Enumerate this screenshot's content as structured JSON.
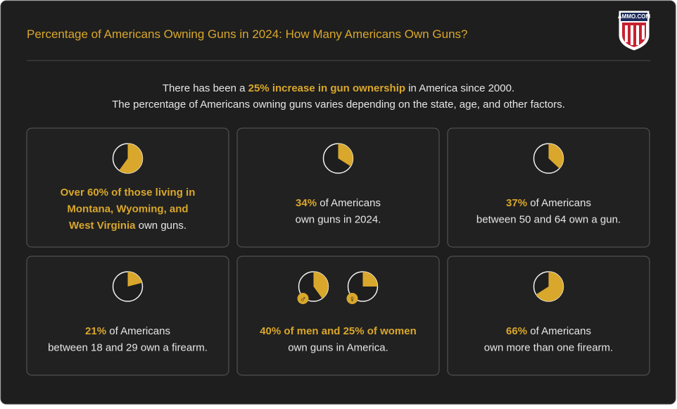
{
  "header": {
    "title": "Percentage of Americans Owning Guns in 2024: How Many Americans Own Guns?",
    "logo_text": "AMMO.COM"
  },
  "intro": {
    "lines": [
      [
        {
          "text": "There has been a "
        },
        {
          "text": "25% increase in gun ownership",
          "highlight": true
        },
        {
          "text": " in America since 2000."
        }
      ],
      [
        {
          "text": "The percentage of Americans owning guns varies depending on the state, age, and other factors."
        }
      ]
    ]
  },
  "cards": [
    {
      "pies": [
        {
          "value": 60
        }
      ],
      "lines": [
        [
          {
            "text": "Over 60% of those living in",
            "highlight": true
          }
        ],
        [
          {
            "text": "Montana, Wyoming, and",
            "highlight": true
          }
        ],
        [
          {
            "text": "West Virginia",
            "highlight": true
          },
          {
            "text": " own guns."
          }
        ]
      ]
    },
    {
      "pies": [
        {
          "value": 34
        }
      ],
      "lines": [
        [
          {
            "text": "34%",
            "highlight": true
          },
          {
            "text": " of Americans"
          }
        ],
        [
          {
            "text": "own guns in 2024."
          }
        ]
      ]
    },
    {
      "pies": [
        {
          "value": 37
        }
      ],
      "lines": [
        [
          {
            "text": "37%",
            "highlight": true
          },
          {
            "text": " of Americans"
          }
        ],
        [
          {
            "text": "between 50 and 64 own a gun."
          }
        ]
      ]
    },
    {
      "pies": [
        {
          "value": 21
        }
      ],
      "lines": [
        [
          {
            "text": "21%",
            "highlight": true
          },
          {
            "text": " of Americans"
          }
        ],
        [
          {
            "text": "between 18 and 29 own a firearm."
          }
        ]
      ]
    },
    {
      "pies": [
        {
          "value": 40,
          "symbol": "♂"
        },
        {
          "value": 25,
          "symbol": "♀"
        }
      ],
      "lines": [
        [
          {
            "text": "40% of men and 25% of women",
            "highlight": true
          }
        ],
        [
          {
            "text": "own guns in America."
          }
        ]
      ]
    },
    {
      "pies": [
        {
          "value": 66
        }
      ],
      "lines": [
        [
          {
            "text": "66%",
            "highlight": true
          },
          {
            "text": " of Americans"
          }
        ],
        [
          {
            "text": "own more than one firearm."
          }
        ]
      ]
    }
  ]
}
